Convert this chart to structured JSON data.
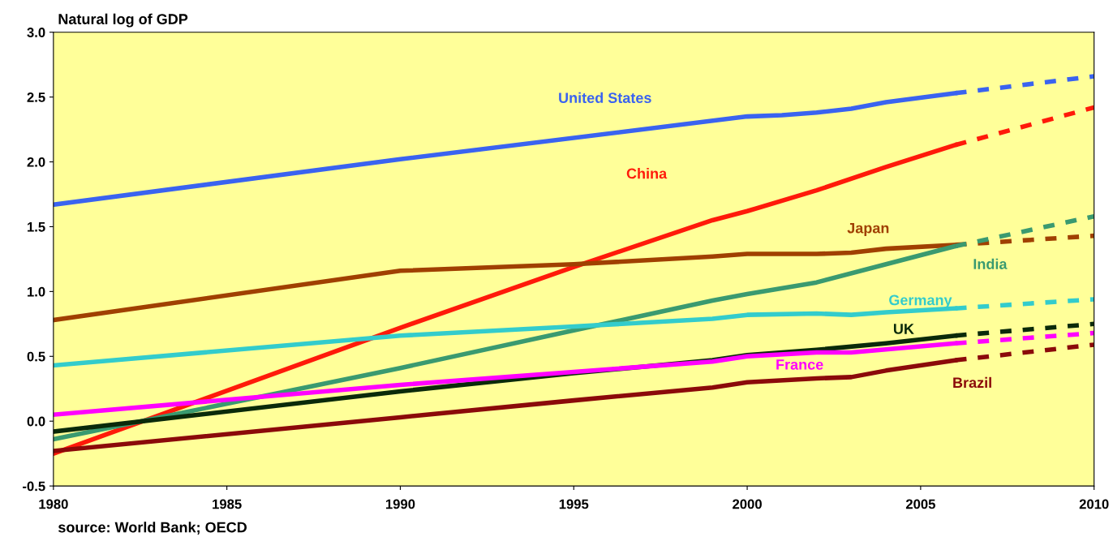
{
  "chart_data": {
    "type": "line",
    "title": "Natural log of GDP",
    "xlim": [
      1980,
      2010
    ],
    "xticks": [
      1980,
      1985,
      1990,
      1995,
      2000,
      2005,
      2010
    ],
    "ylim": [
      -0.5,
      3.0
    ],
    "yticks": [
      {
        "value": -0.5,
        "label": "-0.5"
      },
      {
        "value": 0,
        "label": "0.0"
      },
      {
        "value": 0.5,
        "label": "0.5"
      },
      {
        "value": 1,
        "label": "1.0"
      },
      {
        "value": 1.5,
        "label": "1.5"
      },
      {
        "value": 2,
        "label": "2.0"
      },
      {
        "value": 2.5,
        "label": "2.5"
      },
      {
        "value": 3,
        "label": "3.0"
      }
    ],
    "grid": false,
    "legend": false,
    "marker": "none",
    "series": [
      {
        "name": "United States",
        "color": "#3a63f0",
        "line_style": "solid",
        "x": [
          1980,
          1990,
          2000,
          2001,
          2002,
          2003,
          2004,
          2006
        ],
        "values": [
          1.67,
          2.02,
          2.35,
          2.36,
          2.38,
          2.41,
          2.46,
          2.53
        ]
      },
      {
        "name": "China",
        "color": "#ff1a0a",
        "line_style": "solid",
        "x": [
          1980,
          1990,
          1995,
          1999,
          2000,
          2002,
          2004,
          2006
        ],
        "values": [
          -0.25,
          0.72,
          1.19,
          1.55,
          1.62,
          1.78,
          1.96,
          2.13
        ]
      },
      {
        "name": "Japan",
        "color": "#a04000",
        "line_style": "solid",
        "x": [
          1980,
          1990,
          1995,
          1999,
          2000,
          2002,
          2003,
          2004,
          2006
        ],
        "values": [
          0.78,
          1.16,
          1.21,
          1.27,
          1.29,
          1.29,
          1.3,
          1.33,
          1.36
        ]
      },
      {
        "name": "India",
        "color": "#3a9a70",
        "line_style": "solid",
        "x": [
          1980,
          1990,
          1995,
          1999,
          2000,
          2002,
          2004,
          2006
        ],
        "values": [
          -0.14,
          0.41,
          0.7,
          0.93,
          0.98,
          1.07,
          1.21,
          1.35
        ]
      },
      {
        "name": "Germany",
        "color": "#33cccc",
        "line_style": "solid",
        "x": [
          1980,
          1990,
          1995,
          1999,
          2000,
          2002,
          2003,
          2004,
          2006
        ],
        "values": [
          0.43,
          0.66,
          0.73,
          0.79,
          0.82,
          0.83,
          0.82,
          0.84,
          0.87
        ]
      },
      {
        "name": "UK",
        "color": "#0a2a0a",
        "line_style": "solid",
        "x": [
          1980,
          1990,
          1995,
          1999,
          2000,
          2002,
          2004,
          2006
        ],
        "values": [
          -0.08,
          0.23,
          0.37,
          0.47,
          0.51,
          0.55,
          0.6,
          0.66
        ]
      },
      {
        "name": "France",
        "color": "#ff00ff",
        "line_style": "solid",
        "x": [
          1980,
          1990,
          1995,
          1999,
          2000,
          2002,
          2003,
          2006
        ],
        "values": [
          0.05,
          0.28,
          0.38,
          0.46,
          0.5,
          0.53,
          0.53,
          0.6
        ]
      },
      {
        "name": "Brazil",
        "color": "#8b0a0a",
        "line_style": "solid",
        "x": [
          1980,
          1990,
          1995,
          1999,
          2000,
          2002,
          2003,
          2004,
          2006
        ],
        "values": [
          -0.23,
          0.03,
          0.16,
          0.26,
          0.3,
          0.33,
          0.34,
          0.39,
          0.47
        ]
      },
      {
        "color": "#3a63f0",
        "line_style": "dashed",
        "x": [
          2006,
          2010
        ],
        "values": [
          2.53,
          2.66
        ]
      },
      {
        "color": "#ff1a0a",
        "line_style": "dashed",
        "x": [
          2006,
          2010
        ],
        "values": [
          2.13,
          2.42
        ]
      },
      {
        "color": "#a04000",
        "line_style": "dashed",
        "x": [
          2006,
          2010
        ],
        "values": [
          1.36,
          1.43
        ]
      },
      {
        "color": "#3a9a70",
        "line_style": "dashed",
        "x": [
          2006,
          2010
        ],
        "values": [
          1.35,
          1.58
        ]
      },
      {
        "color": "#33cccc",
        "line_style": "dashed",
        "x": [
          2006,
          2010
        ],
        "values": [
          0.87,
          0.94
        ]
      },
      {
        "color": "#0a2a0a",
        "line_style": "dashed",
        "x": [
          2006,
          2010
        ],
        "values": [
          0.66,
          0.75
        ]
      },
      {
        "color": "#ff00ff",
        "line_style": "dashed",
        "x": [
          2006,
          2010
        ],
        "values": [
          0.6,
          0.68
        ]
      },
      {
        "color": "#8b0a0a",
        "line_style": "dashed",
        "x": [
          2006,
          2010
        ],
        "values": [
          0.47,
          0.59
        ]
      }
    ],
    "annotations": [
      "source: World Bank; OECD"
    ]
  }
}
